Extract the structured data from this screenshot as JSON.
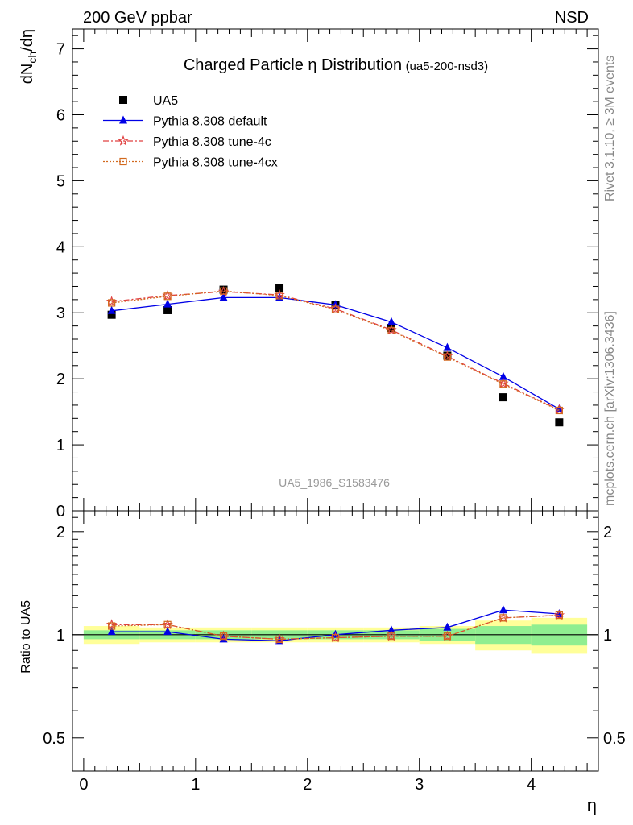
{
  "header": {
    "left": "200 GeV ppbar",
    "right": "NSD",
    "side_rivet": "Rivet 3.1.10, ≥ 3M events",
    "side_mcplots": "mcplots.cern.ch [arXiv:1306.3436]",
    "watermark": "UA5_1986_S1583476"
  },
  "chart_data": [
    {
      "type": "scatter",
      "title": "Charged Particle η Distribution",
      "subtitle": "(ua5-200-nsd3)",
      "ylabel": "dN_ch/dη",
      "ylim": [
        0,
        7.3
      ],
      "yticks": [
        0,
        1,
        2,
        3,
        4,
        5,
        6,
        7
      ],
      "x": [
        0.25,
        0.75,
        1.25,
        1.75,
        2.25,
        2.75,
        3.25,
        3.75,
        4.25
      ],
      "series": [
        {
          "name": "UA5",
          "color": "#000000",
          "marker": "square",
          "style": "points",
          "values": [
            2.97,
            3.04,
            3.35,
            3.37,
            3.12,
            2.77,
            2.35,
            1.72,
            1.34
          ]
        },
        {
          "name": "Pythia 8.308 default",
          "color": "#0000e6",
          "marker": "triangle",
          "style": "solid",
          "values": [
            3.03,
            3.13,
            3.23,
            3.23,
            3.12,
            2.86,
            2.47,
            2.03,
            1.54
          ]
        },
        {
          "name": "Pythia 8.308 tune-4c",
          "color": "#e04040",
          "marker": "star",
          "style": "dashdot",
          "values": [
            3.17,
            3.26,
            3.32,
            3.27,
            3.06,
            2.74,
            2.34,
            1.93,
            1.53
          ]
        },
        {
          "name": "Pythia 8.308 tune-4cx",
          "color": "#d2691e",
          "marker": "open-square",
          "style": "dotted",
          "values": [
            3.15,
            3.25,
            3.33,
            3.26,
            3.05,
            2.73,
            2.33,
            1.92,
            1.52
          ]
        }
      ]
    },
    {
      "type": "line",
      "ylabel": "Ratio to UA5",
      "xlabel": "η",
      "xlim": [
        -0.1,
        4.6
      ],
      "xticks": [
        0,
        1,
        2,
        3,
        4
      ],
      "yscale": "log",
      "ylim": [
        0.4,
        2.3
      ],
      "yticks": [
        "0.5",
        "1",
        "2"
      ],
      "x": [
        0.25,
        0.75,
        1.25,
        1.75,
        2.25,
        2.75,
        3.25,
        3.75,
        4.25
      ],
      "bins": [
        [
          0,
          0.5
        ],
        [
          0.5,
          1.0
        ],
        [
          1.0,
          1.5
        ],
        [
          1.5,
          2.0
        ],
        [
          2.0,
          2.5
        ],
        [
          2.5,
          3.0
        ],
        [
          3.0,
          3.5
        ],
        [
          3.5,
          4.0
        ],
        [
          4.0,
          4.5
        ]
      ],
      "band_stat": [
        0.03,
        0.03,
        0.03,
        0.03,
        0.03,
        0.03,
        0.04,
        0.06,
        0.07
      ],
      "band_total": [
        0.06,
        0.05,
        0.05,
        0.05,
        0.05,
        0.05,
        0.06,
        0.1,
        0.12
      ],
      "band_colors": {
        "stat": "#90ee90",
        "total": "#ffff99"
      },
      "series": [
        {
          "name": "Pythia 8.308 default",
          "color": "#0000e6",
          "marker": "triangle",
          "style": "solid",
          "values": [
            1.02,
            1.02,
            0.97,
            0.96,
            1.0,
            1.03,
            1.05,
            1.18,
            1.15
          ]
        },
        {
          "name": "Pythia 8.308 tune-4c",
          "color": "#e04040",
          "marker": "star",
          "style": "dashdot",
          "values": [
            1.07,
            1.07,
            0.99,
            0.97,
            0.98,
            0.99,
            0.99,
            1.12,
            1.14
          ]
        },
        {
          "name": "Pythia 8.308 tune-4cx",
          "color": "#d2691e",
          "marker": "open-square",
          "style": "dotted",
          "values": [
            1.06,
            1.07,
            0.99,
            0.97,
            0.98,
            0.99,
            0.99,
            1.12,
            1.14
          ]
        }
      ]
    }
  ]
}
